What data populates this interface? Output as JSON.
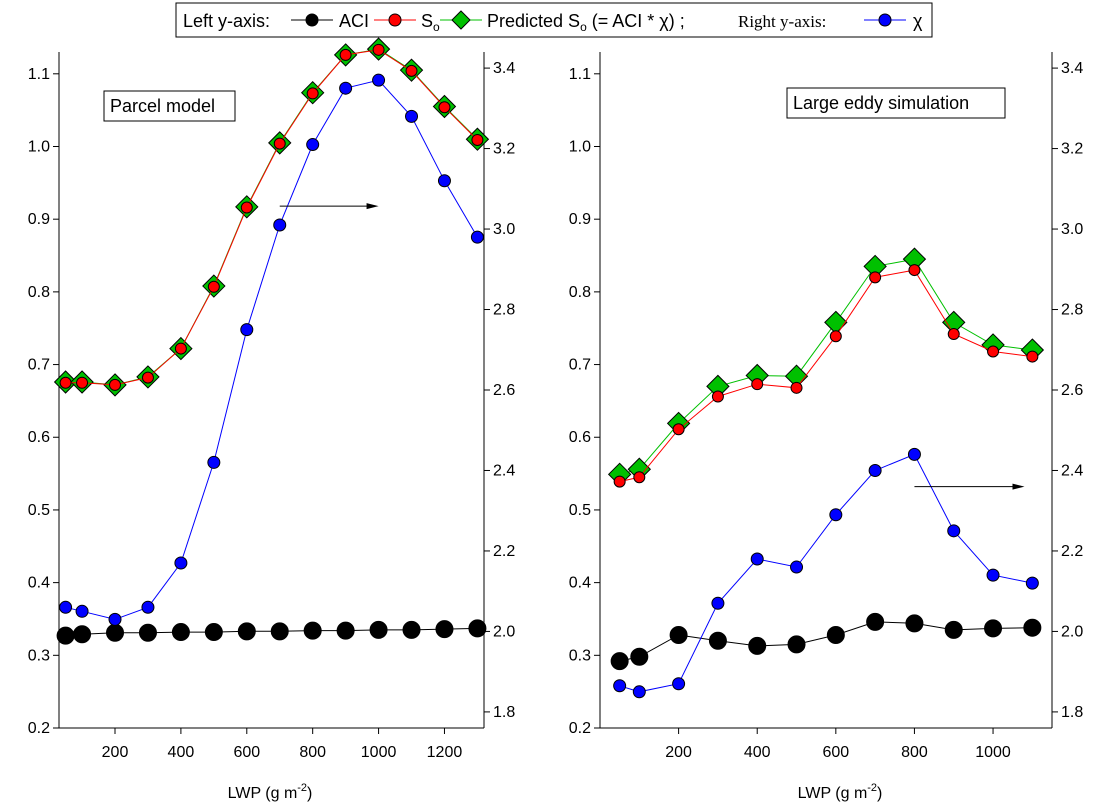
{
  "legend": {
    "left_label": "Left y-axis:",
    "aci_label": "ACI",
    "so_label": "S",
    "so_sub": "o",
    "pred_label": "Predicted S",
    "pred_sub": "o",
    "pred_formula": "(= ACI * χ) ;",
    "right_label": "Right y-axis:",
    "chi_label": "χ"
  },
  "colors": {
    "aci": "#000000",
    "so": "#ff0000",
    "predicted": "#00c000",
    "chi": "#0000ff",
    "axis": "#000000"
  },
  "chart_data": [
    {
      "type": "line",
      "annotation": "Parcel model",
      "xlabel": "LWP (g m",
      "xlabel_sup": "-2",
      "xlabel_close": ")",
      "xlim": [
        30,
        1320
      ],
      "xticks": [
        200,
        400,
        600,
        800,
        1000,
        1200
      ],
      "ylim_left": [
        0.2,
        1.13
      ],
      "yticks_left": [
        0.2,
        0.3,
        0.4,
        0.5,
        0.6,
        0.7,
        0.8,
        0.9,
        1.0,
        1.1
      ],
      "ylim_right": [
        1.76,
        3.44
      ],
      "yticks_right": [
        1.8,
        2.0,
        2.2,
        2.4,
        2.6,
        2.8,
        3.0,
        3.2,
        3.4
      ],
      "x": [
        50,
        100,
        200,
        300,
        400,
        500,
        600,
        700,
        800,
        900,
        1000,
        1100,
        1200,
        1300
      ],
      "series": [
        {
          "name": "ACI",
          "axis": "left",
          "values": [
            0.327,
            0.329,
            0.331,
            0.331,
            0.332,
            0.332,
            0.333,
            0.333,
            0.334,
            0.334,
            0.335,
            0.335,
            0.336,
            0.337
          ]
        },
        {
          "name": "So",
          "axis": "left",
          "values": [
            0.675,
            0.675,
            0.672,
            0.682,
            0.722,
            0.807,
            0.916,
            1.004,
            1.073,
            1.126,
            1.133,
            1.104,
            1.054,
            1.009
          ]
        },
        {
          "name": "Predicted So",
          "axis": "left",
          "values": [
            0.676,
            0.676,
            0.672,
            0.683,
            0.722,
            0.808,
            0.917,
            1.005,
            1.074,
            1.126,
            1.134,
            1.105,
            1.055,
            1.01
          ]
        },
        {
          "name": "χ",
          "axis": "right",
          "values": [
            2.06,
            2.05,
            2.03,
            2.06,
            2.17,
            2.42,
            2.75,
            3.01,
            3.21,
            3.35,
            3.37,
            3.28,
            3.12,
            2.98
          ]
        }
      ],
      "arrow": {
        "from": [
          700,
          0.918
        ],
        "to": [
          1000,
          0.918
        ]
      }
    },
    {
      "type": "line",
      "annotation": "Large eddy simulation",
      "xlabel": "LWP (g m",
      "xlabel_sup": "-2",
      "xlabel_close": ")",
      "xlim": [
        0,
        1150
      ],
      "xticks": [
        200,
        400,
        600,
        800,
        1000
      ],
      "ylim_left": [
        0.2,
        1.13
      ],
      "yticks_left": [
        0.2,
        0.3,
        0.4,
        0.5,
        0.6,
        0.7,
        0.8,
        0.9,
        1.0,
        1.1
      ],
      "ylim_right": [
        1.76,
        3.44
      ],
      "yticks_right": [
        1.8,
        2.0,
        2.2,
        2.4,
        2.6,
        2.8,
        3.0,
        3.2,
        3.4
      ],
      "x": [
        50,
        100,
        200,
        300,
        400,
        500,
        600,
        700,
        800,
        900,
        1000,
        1100
      ],
      "series": [
        {
          "name": "ACI",
          "axis": "left",
          "values": [
            0.292,
            0.298,
            0.328,
            0.32,
            0.313,
            0.315,
            0.328,
            0.346,
            0.344,
            0.335,
            0.337,
            0.338
          ]
        },
        {
          "name": "So",
          "axis": "left",
          "values": [
            0.539,
            0.545,
            0.611,
            0.656,
            0.673,
            0.668,
            0.739,
            0.82,
            0.83,
            0.742,
            0.718,
            0.711
          ]
        },
        {
          "name": "Predicted So",
          "axis": "left",
          "values": [
            0.549,
            0.556,
            0.619,
            0.67,
            0.685,
            0.684,
            0.758,
            0.835,
            0.845,
            0.758,
            0.727,
            0.72
          ]
        },
        {
          "name": "χ",
          "axis": "right",
          "values": [
            1.865,
            1.85,
            1.87,
            2.07,
            2.18,
            2.16,
            2.29,
            2.4,
            2.44,
            2.25,
            2.14,
            2.12
          ]
        }
      ],
      "arrow": {
        "from": [
          800,
          2.36
        ],
        "to": [
          1080,
          2.36
        ]
      }
    }
  ]
}
